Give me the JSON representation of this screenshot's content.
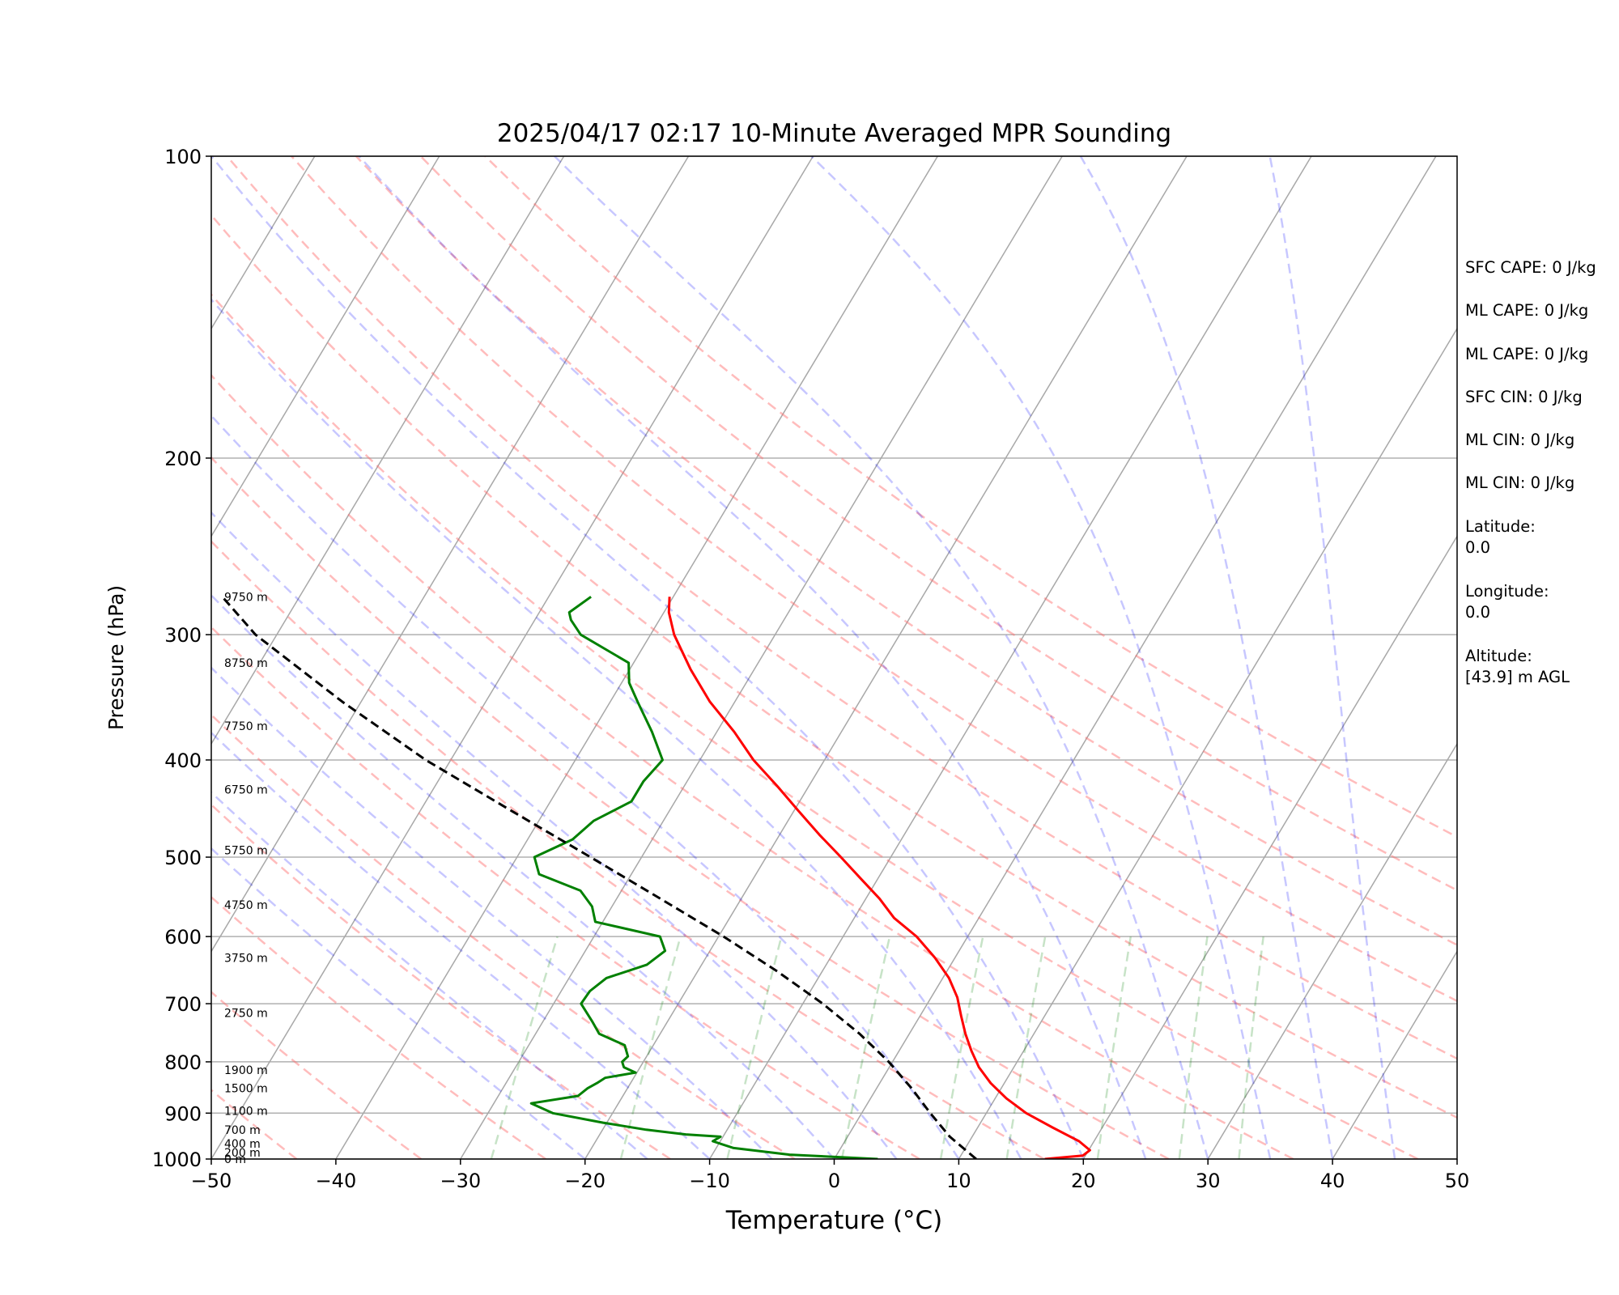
{
  "chart_data": {
    "type": "line",
    "diagram": "skew-t log-p",
    "title": "2025/04/17 02:17 10-Minute Averaged MPR Sounding",
    "xlabel": "Temperature (°C)",
    "ylabel": "Pressure (hPa)",
    "xlim": [
      -50,
      50
    ],
    "ylim": [
      1000,
      100
    ],
    "y_scale": "log",
    "x_ticks": [
      "−50",
      "−40",
      "−30",
      "−20",
      "−10",
      "0",
      "10",
      "20",
      "30",
      "40",
      "50"
    ],
    "y_ticks": [
      "100",
      "200",
      "300",
      "400",
      "500",
      "600",
      "700",
      "800",
      "900",
      "1000"
    ],
    "grid": true,
    "series": [
      {
        "role": "temperature",
        "color": "#ff0000",
        "pressure": [
          1000,
          992,
          980,
          960,
          930,
          900,
          870,
          840,
          810,
          780,
          750,
          720,
          690,
          660,
          630,
          600,
          575,
          550,
          525,
          500,
          475,
          450,
          425,
          400,
          375,
          350,
          325,
          300,
          285,
          275
        ],
        "temperature": [
          16.9,
          19.8,
          20.1,
          18.8,
          16.0,
          13.2,
          10.9,
          8.9,
          7.2,
          5.8,
          4.5,
          3.3,
          2.1,
          0.5,
          -1.6,
          -4.1,
          -6.8,
          -8.9,
          -11.4,
          -14.0,
          -16.8,
          -19.6,
          -22.5,
          -25.7,
          -28.6,
          -32.0,
          -35.1,
          -38.1,
          -39.6,
          -40.3
        ]
      },
      {
        "role": "dewpoint",
        "color": "#008000",
        "pressure": [
          1000,
          990,
          975,
          960,
          950,
          945,
          935,
          920,
          900,
          880,
          865,
          850,
          840,
          830,
          820,
          810,
          800,
          790,
          770,
          750,
          730,
          700,
          680,
          660,
          640,
          620,
          600,
          580,
          560,
          540,
          520,
          500,
          480,
          460,
          440,
          420,
          400,
          375,
          350,
          335,
          320,
          300,
          290,
          287,
          285,
          275
        ],
        "temperature": [
          3.5,
          -3.8,
          -8.6,
          -10.6,
          -10.2,
          -13.1,
          -16.5,
          -20.3,
          -24.8,
          -27.0,
          -23.6,
          -23.2,
          -22.7,
          -22.3,
          -20.1,
          -21.3,
          -21.7,
          -21.5,
          -22.3,
          -24.9,
          -26.0,
          -27.8,
          -27.7,
          -27.0,
          -24.4,
          -23.6,
          -24.7,
          -30.6,
          -31.6,
          -33.3,
          -37.4,
          -38.6,
          -36.4,
          -35.6,
          -33.5,
          -33.5,
          -33.0,
          -35.2,
          -37.8,
          -39.4,
          -40.4,
          -45.6,
          -47.1,
          -47.4,
          -47.6,
          -46.6
        ]
      },
      {
        "role": "parcel profile",
        "color": "#000000",
        "pressure": [
          1000,
          950,
          900,
          850,
          800,
          750,
          700,
          650,
          600,
          550,
          500,
          450,
          400,
          350,
          300,
          275
        ],
        "temperature": [
          11.4,
          8.2,
          5.5,
          2.8,
          -0.3,
          -4.0,
          -8.4,
          -13.6,
          -19.6,
          -26.5,
          -34.1,
          -42.6,
          -52.0,
          -61.5,
          -71.7,
          -76.2
        ]
      }
    ],
    "reference_lines": {
      "dry_adiabats_K": [
        230,
        240,
        250,
        260,
        270,
        280,
        290,
        300,
        310,
        320,
        330,
        340,
        350,
        360,
        370,
        380
      ],
      "moist_adiabats_C": [
        -20,
        -15,
        -10,
        -5,
        0,
        5,
        10,
        15,
        20,
        25,
        30,
        35,
        40,
        45
      ],
      "mixing_ratio_g_per_kg": [
        0.4,
        1,
        2,
        4,
        7,
        10,
        16,
        24,
        32
      ],
      "dry_adiabat_color": "#ff6a6a",
      "moist_adiabat_color": "#0000ff",
      "mixing_ratio_color": "#008000",
      "isotherm_color": "#000000"
    },
    "height_labels": [
      "9750 m",
      "8750 m",
      "7750 m",
      "6750 m",
      "5750 m",
      "4750 m",
      "3750 m",
      "2750 m",
      "1900 m",
      "1500 m",
      "1100 m",
      "700 m",
      "400 m",
      "200 m",
      "0 m"
    ],
    "height_label_pressures": [
      275,
      320,
      370,
      428,
      492,
      558,
      630,
      715,
      815,
      850,
      895,
      935,
      965,
      985,
      1000
    ]
  },
  "side_panel": {
    "sfc_cape": "SFC CAPE: 0 J/kg",
    "ml_cape_1": "ML CAPE: 0 J/kg",
    "ml_cape_2": "ML CAPE: 0 J/kg",
    "sfc_cin": "SFC CIN: 0 J/kg",
    "ml_cin_1": "ML CIN: 0 J/kg",
    "ml_cin_2": "ML CIN: 0 J/kg",
    "latitude": "Latitude:\n0.0",
    "longitude": "Longitude:\n0.0",
    "altitude": "Altitude:\n[43.9] m AGL"
  }
}
